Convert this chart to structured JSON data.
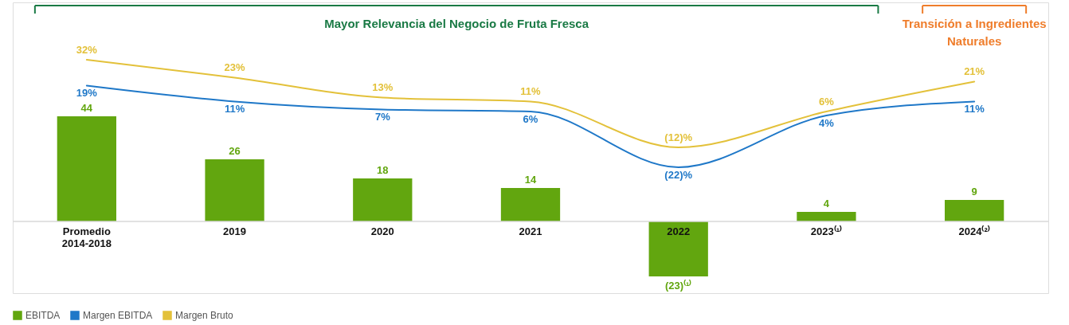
{
  "chart_data": {
    "type": "bar",
    "legend": "bottom",
    "categories": [
      "Promedio\n2014-2018",
      "2019",
      "2020",
      "2021",
      "2022",
      "2023⁽¹⁾",
      "2024⁽²⁾"
    ],
    "series": [
      {
        "name": "EBITDA",
        "color": "#62a60f",
        "values": [
          44,
          26,
          18,
          14,
          -23,
          4,
          9
        ],
        "value_labels": [
          "44",
          "26",
          "18",
          "14",
          "(23)⁽¹⁾",
          "4",
          "9"
        ]
      },
      {
        "name": "Margen EBITDA",
        "type": "line",
        "axis": "y2",
        "color": "#1f78c8",
        "values": [
          19,
          11,
          7,
          6,
          -22,
          4,
          11
        ],
        "value_labels": [
          "19%",
          "11%",
          "7%",
          "6%",
          "(22)%",
          "4%",
          "11%"
        ]
      },
      {
        "name": "Margen Bruto",
        "type": "line",
        "axis": "y2",
        "color": "#e3c13a",
        "values": [
          32,
          23,
          13,
          11,
          -12,
          6,
          21
        ],
        "value_labels": [
          "32%",
          "23%",
          "13%",
          "11%",
          "(12)%",
          "6%",
          "21%"
        ]
      }
    ],
    "annotations": [
      "Mayor Relevancia del Negocio de Fruta Fresca",
      "Transición a Ingredientes\nNaturales"
    ]
  }
}
